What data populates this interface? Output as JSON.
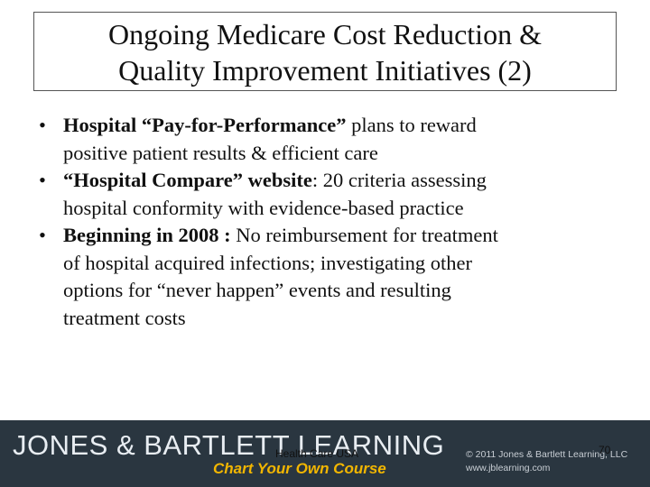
{
  "slide": {
    "title_line1": "Ongoing Medicare Cost Reduction &",
    "title_line2": "Quality Improvement Initiatives (2)",
    "bullets": [
      {
        "bold": "Hospital “Pay-for-Performance”",
        "text1": " plans to reward",
        "text2": "positive patient results & efficient care"
      },
      {
        "bold": "“Hospital Compare” website",
        "text1": ": 20 criteria assessing",
        "text2": "hospital conformity with evidence-based practice"
      },
      {
        "bold": "Beginning in 2008 :",
        "text1": " No reimbursement for treatment",
        "text2": "of hospital acquired infections; investigating other",
        "text3": "options for “never happen”  events and resulting",
        "text4": "treatment costs"
      }
    ],
    "bullet_symbol": "•"
  },
  "footer": {
    "brand": "JONES & BARTLETT LEARNING",
    "tagline": "Chart Your Own Course",
    "copyright_line1": "© 2011 Jones & Bartlett Learning, LLC",
    "copyright_line2": "www.jblearning.com",
    "center_text": "Health Care USA",
    "page_number": "70",
    "background_color": "#2a3640",
    "tagline_color": "#f2b600"
  }
}
